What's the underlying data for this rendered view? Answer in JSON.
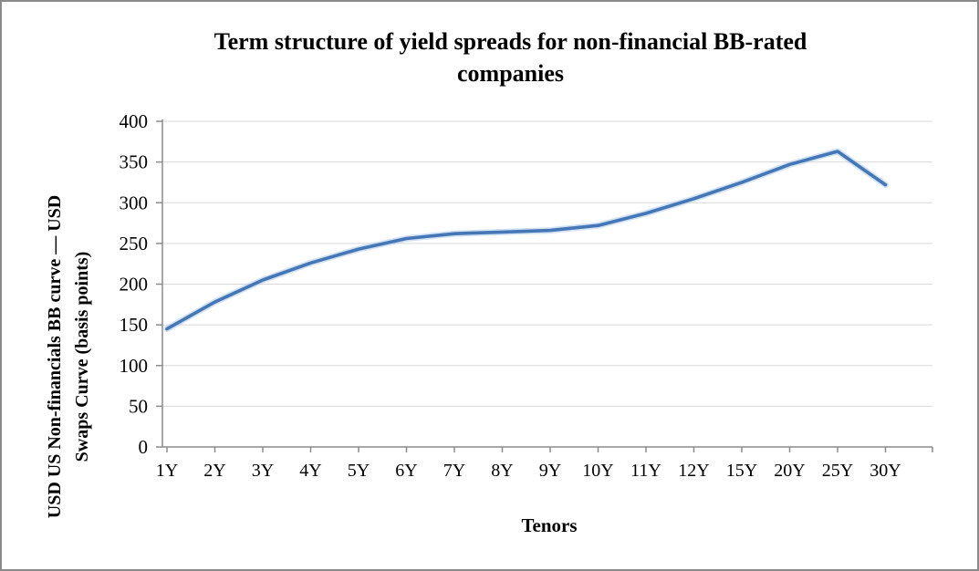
{
  "window": {
    "background": "#ffffff",
    "border_color": "#8a8a8a"
  },
  "chart_data": {
    "type": "line",
    "title": "Term structure of yield spreads for non-financial BB-rated companies",
    "title_lines": [
      "Term structure of yield spreads for non-financial BB-rated",
      "companies"
    ],
    "xlabel": "Tenors",
    "ylabel": "USD US Non-financials BB curve — USD Swaps Curve (basis points)",
    "ylabel_lines": [
      "USD US Non-financials BB curve — USD",
      "Swaps Curve (basis points)"
    ],
    "categories": [
      "1Y",
      "2Y",
      "3Y",
      "4Y",
      "5Y",
      "6Y",
      "7Y",
      "8Y",
      "9Y",
      "10Y",
      "11Y",
      "12Y",
      "15Y",
      "20Y",
      "25Y",
      "30Y"
    ],
    "values": [
      145,
      178,
      205,
      226,
      243,
      256,
      262,
      264,
      266,
      272,
      287,
      305,
      325,
      347,
      363,
      322
    ],
    "ylim": [
      0,
      400
    ],
    "ytick_step": 50,
    "yticks": [
      0,
      50,
      100,
      150,
      200,
      250,
      300,
      350,
      400
    ],
    "grid": "horizontal",
    "legend": "none",
    "colors": {
      "line": "#4576b5",
      "line_halo": "#a9cbea",
      "gridline": "#d9d9d9",
      "axis": "#8c8c8c",
      "text": "#000000"
    }
  }
}
